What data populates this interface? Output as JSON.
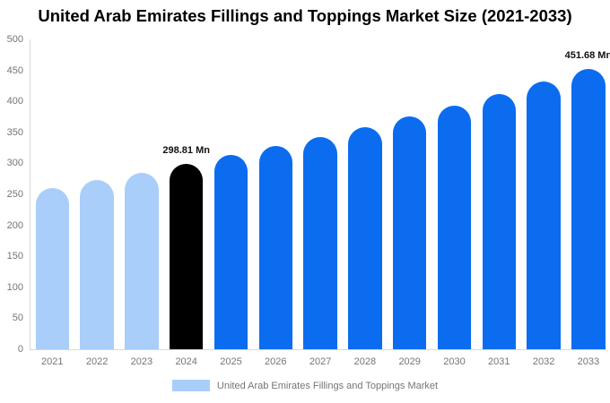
{
  "title": "United Arab Emirates Fillings and Toppings Market Size (2021-2033)",
  "chart_data": {
    "type": "bar",
    "title": "United Arab Emirates Fillings and Toppings Market Size (2021-2033)",
    "categories": [
      "2021",
      "2022",
      "2023",
      "2024",
      "2025",
      "2026",
      "2027",
      "2028",
      "2029",
      "2030",
      "2031",
      "2032",
      "2033"
    ],
    "values": [
      260.4,
      272.6,
      285.4,
      298.81,
      312.9,
      327.6,
      342.9,
      359.1,
      375.9,
      393.6,
      412.1,
      431.4,
      451.68
    ],
    "unit": "Mn",
    "ylim": [
      0,
      500
    ],
    "ytick_step": 50,
    "grid": false,
    "data_labels": [
      {
        "category": "2024",
        "text": "298.81 Mn"
      },
      {
        "category": "2033",
        "text": "451.68 Mn"
      }
    ],
    "bar_colors": [
      "#A8CEF9",
      "#A8CEF9",
      "#A8CEF9",
      "#000000",
      "#0B6CF0",
      "#0B6CF0",
      "#0B6CF0",
      "#0B6CF0",
      "#0B6CF0",
      "#0B6CF0",
      "#0B6CF0",
      "#0B6CF0",
      "#0B6CF0"
    ],
    "legend": [
      {
        "label": "United Arab Emirates Fillings and Toppings Market",
        "color": "#A8CEF9"
      }
    ],
    "legend_position": "bottom-center"
  },
  "colors": {
    "past_bar": "#A8CEF9",
    "highlight_bar": "#000000",
    "forecast_bar": "#0B6CF0",
    "axis_text": "#757575",
    "axis_line": "#D9D9D9",
    "data_label_text": "#111111",
    "title_text": "#000000",
    "background": "#FFFFFF"
  }
}
